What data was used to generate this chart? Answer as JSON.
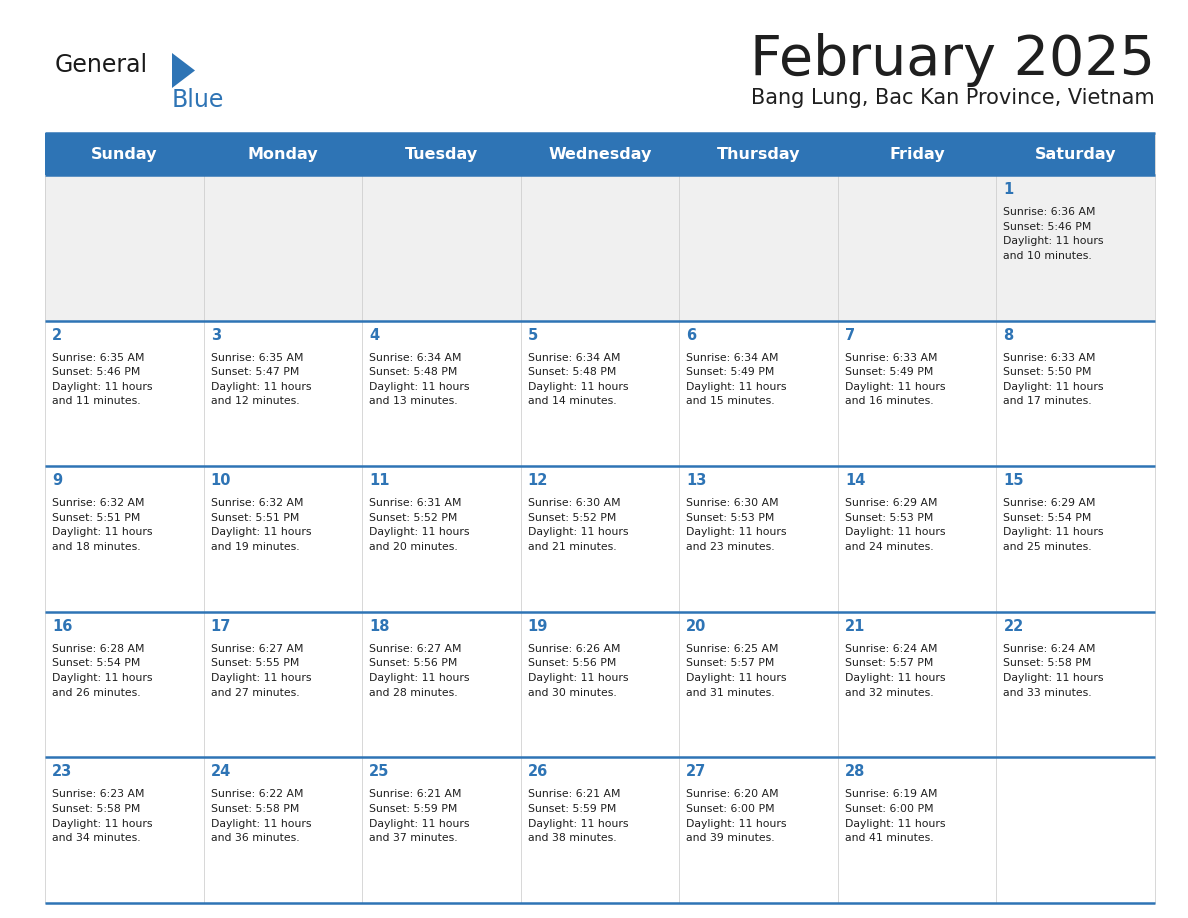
{
  "title": "February 2025",
  "subtitle": "Bang Lung, Bac Kan Province, Vietnam",
  "days_of_week": [
    "Sunday",
    "Monday",
    "Tuesday",
    "Wednesday",
    "Thursday",
    "Friday",
    "Saturday"
  ],
  "header_bg": "#2E74B5",
  "header_text_color": "#FFFFFF",
  "cell_bg_light": "#F0F0F0",
  "cell_bg_white": "#FFFFFF",
  "separator_color": "#2E74B5",
  "title_color": "#1F1F1F",
  "subtitle_color": "#1F1F1F",
  "day_number_color": "#2E74B5",
  "cell_text_color": "#1F1F1F",
  "logo_general_color": "#1A1A1A",
  "logo_blue_color": "#2E74B5",
  "calendar_data": [
    [
      null,
      null,
      null,
      null,
      null,
      null,
      {
        "day": 1,
        "sunrise": "6:36 AM",
        "sunset": "5:46 PM",
        "daylight_hours": 11,
        "daylight_minutes": 10
      }
    ],
    [
      {
        "day": 2,
        "sunrise": "6:35 AM",
        "sunset": "5:46 PM",
        "daylight_hours": 11,
        "daylight_minutes": 11
      },
      {
        "day": 3,
        "sunrise": "6:35 AM",
        "sunset": "5:47 PM",
        "daylight_hours": 11,
        "daylight_minutes": 12
      },
      {
        "day": 4,
        "sunrise": "6:34 AM",
        "sunset": "5:48 PM",
        "daylight_hours": 11,
        "daylight_minutes": 13
      },
      {
        "day": 5,
        "sunrise": "6:34 AM",
        "sunset": "5:48 PM",
        "daylight_hours": 11,
        "daylight_minutes": 14
      },
      {
        "day": 6,
        "sunrise": "6:34 AM",
        "sunset": "5:49 PM",
        "daylight_hours": 11,
        "daylight_minutes": 15
      },
      {
        "day": 7,
        "sunrise": "6:33 AM",
        "sunset": "5:49 PM",
        "daylight_hours": 11,
        "daylight_minutes": 16
      },
      {
        "day": 8,
        "sunrise": "6:33 AM",
        "sunset": "5:50 PM",
        "daylight_hours": 11,
        "daylight_minutes": 17
      }
    ],
    [
      {
        "day": 9,
        "sunrise": "6:32 AM",
        "sunset": "5:51 PM",
        "daylight_hours": 11,
        "daylight_minutes": 18
      },
      {
        "day": 10,
        "sunrise": "6:32 AM",
        "sunset": "5:51 PM",
        "daylight_hours": 11,
        "daylight_minutes": 19
      },
      {
        "day": 11,
        "sunrise": "6:31 AM",
        "sunset": "5:52 PM",
        "daylight_hours": 11,
        "daylight_minutes": 20
      },
      {
        "day": 12,
        "sunrise": "6:30 AM",
        "sunset": "5:52 PM",
        "daylight_hours": 11,
        "daylight_minutes": 21
      },
      {
        "day": 13,
        "sunrise": "6:30 AM",
        "sunset": "5:53 PM",
        "daylight_hours": 11,
        "daylight_minutes": 23
      },
      {
        "day": 14,
        "sunrise": "6:29 AM",
        "sunset": "5:53 PM",
        "daylight_hours": 11,
        "daylight_minutes": 24
      },
      {
        "day": 15,
        "sunrise": "6:29 AM",
        "sunset": "5:54 PM",
        "daylight_hours": 11,
        "daylight_minutes": 25
      }
    ],
    [
      {
        "day": 16,
        "sunrise": "6:28 AM",
        "sunset": "5:54 PM",
        "daylight_hours": 11,
        "daylight_minutes": 26
      },
      {
        "day": 17,
        "sunrise": "6:27 AM",
        "sunset": "5:55 PM",
        "daylight_hours": 11,
        "daylight_minutes": 27
      },
      {
        "day": 18,
        "sunrise": "6:27 AM",
        "sunset": "5:56 PM",
        "daylight_hours": 11,
        "daylight_minutes": 28
      },
      {
        "day": 19,
        "sunrise": "6:26 AM",
        "sunset": "5:56 PM",
        "daylight_hours": 11,
        "daylight_minutes": 30
      },
      {
        "day": 20,
        "sunrise": "6:25 AM",
        "sunset": "5:57 PM",
        "daylight_hours": 11,
        "daylight_minutes": 31
      },
      {
        "day": 21,
        "sunrise": "6:24 AM",
        "sunset": "5:57 PM",
        "daylight_hours": 11,
        "daylight_minutes": 32
      },
      {
        "day": 22,
        "sunrise": "6:24 AM",
        "sunset": "5:58 PM",
        "daylight_hours": 11,
        "daylight_minutes": 33
      }
    ],
    [
      {
        "day": 23,
        "sunrise": "6:23 AM",
        "sunset": "5:58 PM",
        "daylight_hours": 11,
        "daylight_minutes": 34
      },
      {
        "day": 24,
        "sunrise": "6:22 AM",
        "sunset": "5:58 PM",
        "daylight_hours": 11,
        "daylight_minutes": 36
      },
      {
        "day": 25,
        "sunrise": "6:21 AM",
        "sunset": "5:59 PM",
        "daylight_hours": 11,
        "daylight_minutes": 37
      },
      {
        "day": 26,
        "sunrise": "6:21 AM",
        "sunset": "5:59 PM",
        "daylight_hours": 11,
        "daylight_minutes": 38
      },
      {
        "day": 27,
        "sunrise": "6:20 AM",
        "sunset": "6:00 PM",
        "daylight_hours": 11,
        "daylight_minutes": 39
      },
      {
        "day": 28,
        "sunrise": "6:19 AM",
        "sunset": "6:00 PM",
        "daylight_hours": 11,
        "daylight_minutes": 41
      },
      null
    ]
  ]
}
